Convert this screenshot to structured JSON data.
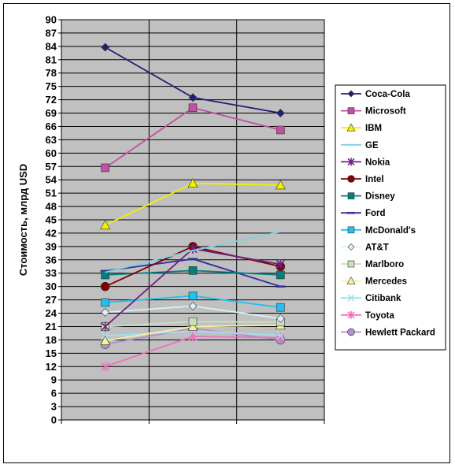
{
  "chart_data": {
    "type": "line",
    "title": "",
    "xlabel": "",
    "ylabel": "Стоимость, млрд USD",
    "categories": [
      "",
      "",
      ""
    ],
    "ylim": [
      0,
      90
    ],
    "ytick_step": 3,
    "yticks": [
      "0",
      "3",
      "6",
      "9",
      "12",
      "15",
      "18",
      "21",
      "24",
      "27",
      "30",
      "33",
      "36",
      "39",
      "42",
      "45",
      "48",
      "51",
      "54",
      "57",
      "60",
      "63",
      "66",
      "69",
      "72",
      "75",
      "78",
      "81",
      "84",
      "87",
      "90"
    ],
    "grid": true,
    "legend_position": "right",
    "plot_background": "#c0c0c0",
    "series": [
      {
        "name": "Coca-Cola",
        "color": "#1f1f7a",
        "marker": "diamond",
        "values": [
          83.8,
          72.5,
          69.0
        ]
      },
      {
        "name": "Microsoft",
        "color": "#c050a0",
        "marker": "square",
        "values": [
          56.7,
          70.2,
          65.2
        ]
      },
      {
        "name": "IBM",
        "color": "#f0f000",
        "marker": "triangle",
        "values": [
          43.8,
          53.2,
          52.8
        ]
      },
      {
        "name": "GE",
        "color": "#80d0e0",
        "marker": "none",
        "values": [
          33.2,
          38.1,
          42.3
        ]
      },
      {
        "name": "Nokia",
        "color": "#702080",
        "marker": "star",
        "values": [
          21.0,
          38.5,
          35.0
        ]
      },
      {
        "name": "Intel",
        "color": "#800000",
        "marker": "circle",
        "values": [
          30.0,
          39.0,
          34.5
        ]
      },
      {
        "name": "Disney",
        "color": "#008080",
        "marker": "square",
        "values": [
          32.6,
          33.6,
          32.6
        ]
      },
      {
        "name": "Ford",
        "color": "#3030a0",
        "marker": "dash",
        "values": [
          33.5,
          36.2,
          30.0
        ]
      },
      {
        "name": "McDonald's",
        "color": "#20c0f0",
        "marker": "square",
        "values": [
          26.4,
          27.9,
          25.3
        ]
      },
      {
        "name": "AT&T",
        "color": "#d8f0f8",
        "marker": "diamond",
        "values": [
          24.2,
          25.6,
          22.8
        ]
      },
      {
        "name": "Marlboro",
        "color": "#c8e0c0",
        "marker": "square",
        "values": [
          21.0,
          22.1,
          22.0
        ]
      },
      {
        "name": "Mercedes",
        "color": "#f8f0a0",
        "marker": "triangle",
        "values": [
          17.8,
          21.0,
          21.3
        ]
      },
      {
        "name": "Citibank",
        "color": "#a0e0f0",
        "marker": "x",
        "values": [
          18.9,
          20.0,
          19.0
        ]
      },
      {
        "name": "Toyota",
        "color": "#f070c0",
        "marker": "star",
        "values": [
          12.0,
          18.8,
          18.5
        ]
      },
      {
        "name": "Hewlett Packard",
        "color": "#b090d0",
        "marker": "circle",
        "values": [
          17.0,
          20.6,
          18.0
        ]
      }
    ]
  }
}
